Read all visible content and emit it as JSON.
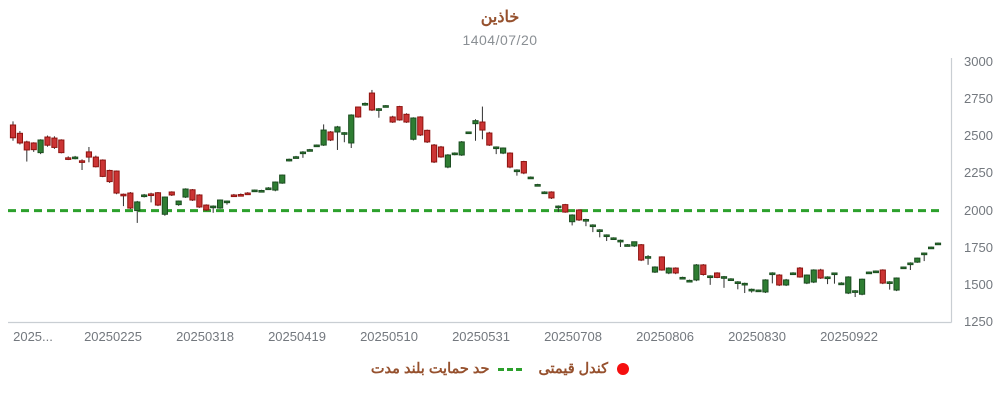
{
  "header": {
    "title": "خاذین",
    "subtitle": "1404/07/20"
  },
  "legend": {
    "candle_label": "کندل قیمتی",
    "support_label": "حد حمایت بلند مدت"
  },
  "colors": {
    "up_fill": "#2e7d32",
    "up_stroke": "#1b4d20",
    "down_fill": "#cb3434",
    "down_stroke": "#8f1410",
    "wick": "#2f2f2f",
    "support_line": "#2ca02c",
    "legend_dot": "#f50f0f",
    "axis_line": "#c9ced3",
    "tick_text": "#73787e",
    "title_text": "#96512e"
  },
  "chart_data": {
    "type": "candlestick",
    "title": "خاذین",
    "subtitle": "1404/07/20",
    "ylabel": "",
    "xlabel": "",
    "y_range": [
      1250,
      3000
    ],
    "y_ticks": [
      3000,
      2750,
      2500,
      2250,
      2000,
      1750,
      1500,
      1250
    ],
    "grid": false,
    "legend_position": "bottom-center",
    "support_level": 2000,
    "x_tick_labels": [
      "2025...",
      "20250225",
      "20250318",
      "20250419",
      "20250510",
      "20250531",
      "20250708",
      "20250806",
      "20250830",
      "20250922"
    ],
    "x_tick_positions": [
      33,
      113,
      205,
      297,
      389,
      481,
      573,
      665,
      757,
      849
    ],
    "ohlc_note": "values estimated from pixels, format [open, high, low, close]",
    "candles": [
      [
        2576,
        2600,
        2470,
        2490
      ],
      [
        2520,
        2535,
        2445,
        2455
      ],
      [
        2462,
        2470,
        2330,
        2408
      ],
      [
        2455,
        2460,
        2395,
        2410
      ],
      [
        2390,
        2480,
        2380,
        2475
      ],
      [
        2495,
        2505,
        2430,
        2440
      ],
      [
        2488,
        2500,
        2415,
        2425
      ],
      [
        2475,
        2480,
        2385,
        2390
      ],
      [
        2355,
        2365,
        2340,
        2350
      ],
      [
        2352,
        2368,
        2345,
        2360
      ],
      [
        2335,
        2345,
        2273,
        2330
      ],
      [
        2395,
        2428,
        2325,
        2360
      ],
      [
        2360,
        2370,
        2290,
        2295
      ],
      [
        2340,
        2345,
        2225,
        2230
      ],
      [
        2270,
        2275,
        2186,
        2195
      ],
      [
        2266,
        2270,
        2110,
        2118
      ],
      [
        2110,
        2115,
        2030,
        2105
      ],
      [
        2118,
        2125,
        2010,
        2017
      ],
      [
        2000,
        2065,
        1917,
        2058
      ],
      [
        2100,
        2112,
        2088,
        2105
      ],
      [
        2112,
        2120,
        2055,
        2110
      ],
      [
        2120,
        2125,
        2030,
        2037
      ],
      [
        1975,
        2095,
        1965,
        2091
      ],
      [
        2125,
        2130,
        2098,
        2105
      ],
      [
        2040,
        2068,
        2032,
        2064
      ],
      [
        2091,
        2150,
        2085,
        2145
      ],
      [
        2140,
        2145,
        2065,
        2071
      ],
      [
        2105,
        2110,
        2018,
        2024
      ],
      [
        2037,
        2042,
        1998,
        2004
      ],
      [
        2028,
        2035,
        1985,
        2030
      ],
      [
        2017,
        2075,
        2012,
        2071
      ],
      [
        2060,
        2068,
        2040,
        2064
      ],
      [
        2105,
        2112,
        2095,
        2102
      ],
      [
        2108,
        2115,
        2100,
        2106
      ],
      [
        2118,
        2124,
        2110,
        2115
      ],
      [
        2130,
        2142,
        2125,
        2138
      ],
      [
        2132,
        2140,
        2126,
        2135
      ],
      [
        2150,
        2158,
        2144,
        2152
      ],
      [
        2138,
        2196,
        2130,
        2192
      ],
      [
        2185,
        2243,
        2180,
        2239
      ],
      [
        2340,
        2350,
        2330,
        2345
      ],
      [
        2360,
        2368,
        2352,
        2362
      ],
      [
        2390,
        2400,
        2355,
        2394
      ],
      [
        2408,
        2415,
        2400,
        2410
      ],
      [
        2435,
        2445,
        2428,
        2441
      ],
      [
        2441,
        2580,
        2435,
        2542
      ],
      [
        2529,
        2535,
        2468,
        2475
      ],
      [
        2529,
        2570,
        2408,
        2563
      ],
      [
        2520,
        2528,
        2460,
        2524
      ],
      [
        2455,
        2648,
        2421,
        2643
      ],
      [
        2697,
        2700,
        2625,
        2630
      ],
      [
        2718,
        2728,
        2705,
        2721
      ],
      [
        2791,
        2812,
        2670,
        2677
      ],
      [
        2682,
        2690,
        2625,
        2685
      ],
      [
        2700,
        2710,
        2698,
        2706
      ],
      [
        2630,
        2638,
        2590,
        2596
      ],
      [
        2700,
        2705,
        2605,
        2610
      ],
      [
        2648,
        2655,
        2590,
        2596
      ],
      [
        2480,
        2628,
        2472,
        2623
      ],
      [
        2630,
        2635,
        2502,
        2509
      ],
      [
        2540,
        2545,
        2455,
        2462
      ],
      [
        2441,
        2448,
        2320,
        2327
      ],
      [
        2428,
        2435,
        2355,
        2361
      ],
      [
        2293,
        2380,
        2285,
        2374
      ],
      [
        2380,
        2392,
        2372,
        2387
      ],
      [
        2374,
        2468,
        2368,
        2462
      ],
      [
        2525,
        2532,
        2518,
        2529
      ],
      [
        2585,
        2615,
        2470,
        2605
      ],
      [
        2596,
        2700,
        2480,
        2542
      ],
      [
        2522,
        2530,
        2435,
        2441
      ],
      [
        2425,
        2432,
        2380,
        2428
      ],
      [
        2387,
        2425,
        2380,
        2421
      ],
      [
        2387,
        2392,
        2285,
        2293
      ],
      [
        2270,
        2278,
        2235,
        2273
      ],
      [
        2330,
        2335,
        2245,
        2253
      ],
      [
        2222,
        2230,
        2215,
        2225
      ],
      [
        2172,
        2180,
        2165,
        2175
      ],
      [
        2122,
        2130,
        2115,
        2125
      ],
      [
        2125,
        2130,
        2078,
        2085
      ],
      [
        2028,
        2035,
        1990,
        2030
      ],
      [
        2040,
        2045,
        1985,
        1990
      ],
      [
        1925,
        1975,
        1900,
        1970
      ],
      [
        2004,
        2010,
        1930,
        1937
      ],
      [
        1935,
        1945,
        1895,
        1940
      ],
      [
        1900,
        1908,
        1855,
        1903
      ],
      [
        1868,
        1875,
        1820,
        1870
      ],
      [
        1833,
        1840,
        1795,
        1836
      ],
      [
        1813,
        1820,
        1808,
        1816
      ],
      [
        1798,
        1805,
        1755,
        1800
      ],
      [
        1768,
        1775,
        1762,
        1770
      ],
      [
        1762,
        1792,
        1755,
        1790
      ],
      [
        1770,
        1775,
        1660,
        1667
      ],
      [
        1688,
        1700,
        1635,
        1690
      ],
      [
        1586,
        1625,
        1580,
        1620
      ],
      [
        1688,
        1692,
        1595,
        1600
      ],
      [
        1580,
        1618,
        1572,
        1613
      ],
      [
        1613,
        1618,
        1572,
        1580
      ],
      [
        1548,
        1555,
        1542,
        1550
      ],
      [
        1528,
        1535,
        1522,
        1530
      ],
      [
        1533,
        1640,
        1525,
        1634
      ],
      [
        1634,
        1640,
        1562,
        1570
      ],
      [
        1558,
        1565,
        1500,
        1560
      ],
      [
        1580,
        1585,
        1545,
        1550
      ],
      [
        1552,
        1560,
        1480,
        1555
      ],
      [
        1538,
        1545,
        1532,
        1540
      ],
      [
        1518,
        1525,
        1470,
        1520
      ],
      [
        1508,
        1515,
        1445,
        1510
      ],
      [
        1468,
        1475,
        1448,
        1470
      ],
      [
        1462,
        1468,
        1455,
        1465
      ],
      [
        1452,
        1538,
        1445,
        1533
      ],
      [
        1578,
        1585,
        1510,
        1580
      ],
      [
        1566,
        1572,
        1492,
        1499
      ],
      [
        1499,
        1540,
        1492,
        1533
      ],
      [
        1578,
        1585,
        1572,
        1580
      ],
      [
        1613,
        1620,
        1548,
        1553
      ],
      [
        1512,
        1570,
        1505,
        1566
      ],
      [
        1519,
        1605,
        1512,
        1600
      ],
      [
        1600,
        1608,
        1540,
        1546
      ],
      [
        1550,
        1558,
        1505,
        1553
      ],
      [
        1576,
        1582,
        1508,
        1580
      ],
      [
        1510,
        1518,
        1505,
        1512
      ],
      [
        1445,
        1558,
        1438,
        1553
      ],
      [
        1458,
        1465,
        1418,
        1460
      ],
      [
        1437,
        1542,
        1430,
        1538
      ],
      [
        1583,
        1590,
        1578,
        1586
      ],
      [
        1590,
        1597,
        1585,
        1593
      ],
      [
        1600,
        1605,
        1505,
        1512
      ],
      [
        1518,
        1525,
        1468,
        1520
      ],
      [
        1465,
        1550,
        1458,
        1546
      ],
      [
        1617,
        1623,
        1612,
        1620
      ],
      [
        1645,
        1652,
        1600,
        1647
      ],
      [
        1653,
        1683,
        1648,
        1680
      ],
      [
        1712,
        1718,
        1660,
        1714
      ],
      [
        1750,
        1758,
        1745,
        1754
      ],
      [
        1778,
        1785,
        1772,
        1781
      ]
    ]
  }
}
